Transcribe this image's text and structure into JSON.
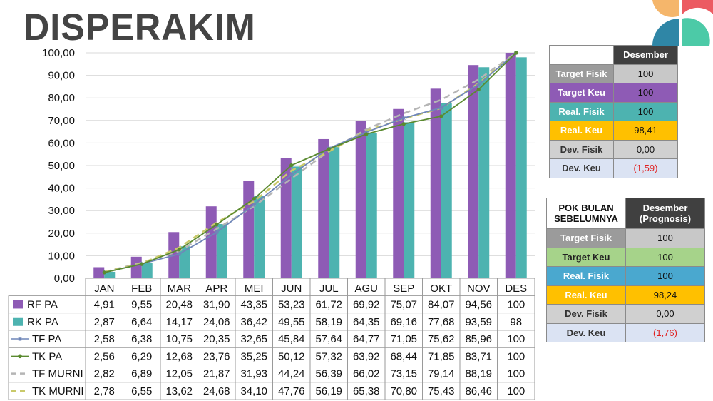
{
  "title": "DISPERAKIM",
  "colors": {
    "rf_pa": "#8e5bb5",
    "rk_pa": "#4db3b0",
    "tf_pa": "#6f86b8",
    "tk_pa": "#5a8a2f",
    "tf_murni": "#b5b5b5",
    "tk_murni": "#c9c96a"
  },
  "chart_data": {
    "type": "bar",
    "categories": [
      "JAN",
      "FEB",
      "MAR",
      "APR",
      "MEI",
      "JUN",
      "JUL",
      "AGU",
      "SEP",
      "OKT",
      "NOV",
      "DES"
    ],
    "ylim": [
      0,
      100
    ],
    "yticks": [
      "0,00",
      "10,00",
      "20,00",
      "30,00",
      "40,00",
      "50,00",
      "60,00",
      "70,00",
      "80,00",
      "90,00",
      "100,00"
    ],
    "series": [
      {
        "name": "RF PA",
        "kind": "bar",
        "values": [
          4.91,
          9.55,
          20.48,
          31.9,
          43.35,
          53.23,
          61.72,
          69.92,
          75.07,
          84.07,
          94.56,
          100
        ],
        "labels": [
          "4,91",
          "9,55",
          "20,48",
          "31,90",
          "43,35",
          "53,23",
          "61,72",
          "69,92",
          "75,07",
          "84,07",
          "94,56",
          "100"
        ]
      },
      {
        "name": "RK PA",
        "kind": "bar",
        "values": [
          2.87,
          6.64,
          14.17,
          24.06,
          36.42,
          49.55,
          58.19,
          64.35,
          69.16,
          77.68,
          93.59,
          98
        ],
        "labels": [
          "2,87",
          "6,64",
          "14,17",
          "24,06",
          "36,42",
          "49,55",
          "58,19",
          "64,35",
          "69,16",
          "77,68",
          "93,59",
          "98"
        ]
      },
      {
        "name": "TF PA",
        "kind": "line",
        "marker": "star",
        "values": [
          2.58,
          6.38,
          10.75,
          20.35,
          32.65,
          45.84,
          57.64,
          64.77,
          71.05,
          75.62,
          85.96,
          100
        ],
        "labels": [
          "2,58",
          "6,38",
          "10,75",
          "20,35",
          "32,65",
          "45,84",
          "57,64",
          "64,77",
          "71,05",
          "75,62",
          "85,96",
          "100"
        ]
      },
      {
        "name": "TK PA",
        "kind": "line",
        "marker": "dot",
        "values": [
          2.56,
          6.29,
          12.68,
          23.76,
          35.25,
          50.12,
          57.32,
          63.92,
          68.44,
          71.85,
          83.71,
          100
        ],
        "labels": [
          "2,56",
          "6,29",
          "12,68",
          "23,76",
          "35,25",
          "50,12",
          "57,32",
          "63,92",
          "68,44",
          "71,85",
          "83,71",
          "100"
        ]
      },
      {
        "name": "TF MURNI",
        "kind": "dashed",
        "values": [
          2.82,
          6.89,
          12.05,
          21.87,
          31.93,
          44.24,
          56.39,
          66.02,
          73.15,
          79.14,
          88.19,
          100
        ],
        "labels": [
          "2,82",
          "6,89",
          "12,05",
          "21,87",
          "31,93",
          "44,24",
          "56,39",
          "66,02",
          "73,15",
          "79,14",
          "88,19",
          "100"
        ]
      },
      {
        "name": "TK MURNI",
        "kind": "dashed",
        "values": [
          2.78,
          6.55,
          13.62,
          24.68,
          34.1,
          47.76,
          56.19,
          65.38,
          70.8,
          75.43,
          86.46,
          100
        ],
        "labels": [
          "2,78",
          "6,55",
          "13,62",
          "24,68",
          "34,10",
          "47,76",
          "56,19",
          "65,38",
          "70,80",
          "75,43",
          "86,46",
          "100"
        ]
      }
    ]
  },
  "table_current": {
    "header": "Desember",
    "rows": [
      {
        "label": "Target Fisik",
        "value": "100",
        "color": "#9b9b9b",
        "val_bg": "#c8c8c8"
      },
      {
        "label": "Target Keu",
        "value": "100",
        "color": "#8e5bb5",
        "val_bg": "#8e5bb5"
      },
      {
        "label": "Real. Fisik",
        "value": "100",
        "color": "#4db3b0",
        "val_bg": "#4db3b0"
      },
      {
        "label": "Real. Keu",
        "value": "98,41",
        "color": "#ffc000",
        "val_bg": "#ffc000"
      },
      {
        "label": "Dev. Fisik",
        "value": "0,00",
        "color": "#d0d0d0",
        "val_bg": "#d0d0d0"
      },
      {
        "label": "Dev. Keu",
        "value": "(1,59)",
        "color": "#dbe3f3",
        "val_bg": "#dbe3f3"
      }
    ]
  },
  "table_previous": {
    "header_left": "POK BULAN SEBELUMNYA",
    "header_right": "Desember (Prognosis)",
    "rows": [
      {
        "label": "Target Fisik",
        "value": "100",
        "color": "#9b9b9b",
        "val_bg": "#c8c8c8"
      },
      {
        "label": "Target Keu",
        "value": "100",
        "color": "#a6d38a",
        "val_bg": "#a6d38a"
      },
      {
        "label": "Real. Fisik",
        "value": "100",
        "color": "#4aa8cf",
        "val_bg": "#4aa8cf"
      },
      {
        "label": "Real. Keu",
        "value": "98,24",
        "color": "#ffc000",
        "val_bg": "#ffc000"
      },
      {
        "label": "Dev. Fisik",
        "value": "0,00",
        "color": "#d0d0d0",
        "val_bg": "#d0d0d0"
      },
      {
        "label": "Dev. Keu",
        "value": "(1,76)",
        "color": "#dbe3f3",
        "val_bg": "#dbe3f3"
      }
    ]
  }
}
